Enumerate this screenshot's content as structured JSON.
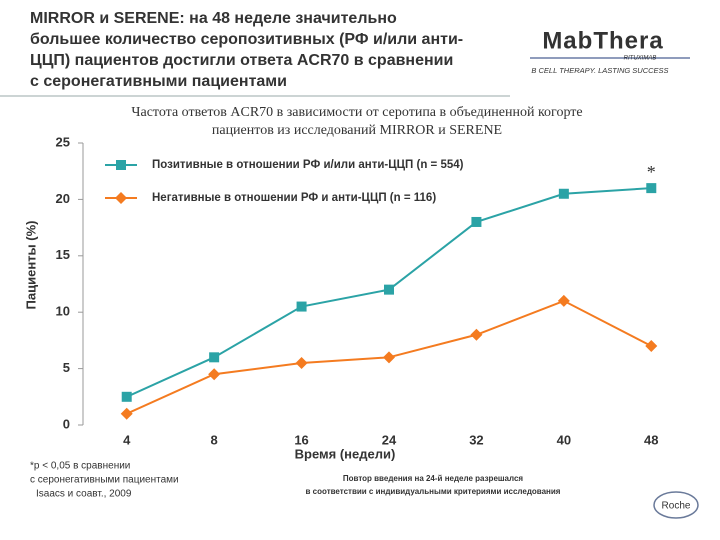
{
  "slide_title": [
    "MIRROR и SERENE: на 48 неделе значительно",
    "большее количество серопозитивных (РФ и/или анти-",
    "ЦЦП) пациентов достигли ответа ACR70 в сравнении",
    "с серонегативными пациентами"
  ],
  "logo": {
    "brand": "MabThera",
    "sub": "RITUXIMAB",
    "slogan": "B CELL THERAPY. LASTING SUCCESS",
    "company": "Roche"
  },
  "chart_data": {
    "type": "line",
    "title": [
      "Частота ответов ACR70 в зависимости от серотипа в объединенной когорте",
      "пациентов из исследований MIRROR и SERENE"
    ],
    "x_label": "Время (недели)",
    "y_label": "Пациенты (%)",
    "categories": [
      "4",
      "8",
      "16",
      "24",
      "32",
      "40",
      "48"
    ],
    "series": [
      {
        "name": "Позитивные в отношении РФ и/или анти-ЦЦП (n = 554)",
        "color": "#2ba3a6",
        "marker": "square",
        "values": [
          2.5,
          6,
          10.5,
          12,
          18,
          20.5,
          21
        ]
      },
      {
        "name": "Негативные в отношении РФ и анти-ЦЦП (n = 116)",
        "color": "#f47b20",
        "marker": "diamond",
        "values": [
          1,
          4.5,
          5.5,
          6,
          8,
          11,
          7
        ]
      }
    ],
    "ylim": [
      0,
      25
    ],
    "yticks": [
      0,
      5,
      10,
      15,
      20,
      25
    ],
    "annotation": "*",
    "footnote": [
      "*p < 0,05 в сравнении",
      "с серонегативными пациентами",
      "Isaacs и соавт., 2009"
    ],
    "note": [
      "Повтор введения на 24-й неделе разрешался",
      "в соответствии с индивидуальными критериями исследования"
    ]
  }
}
